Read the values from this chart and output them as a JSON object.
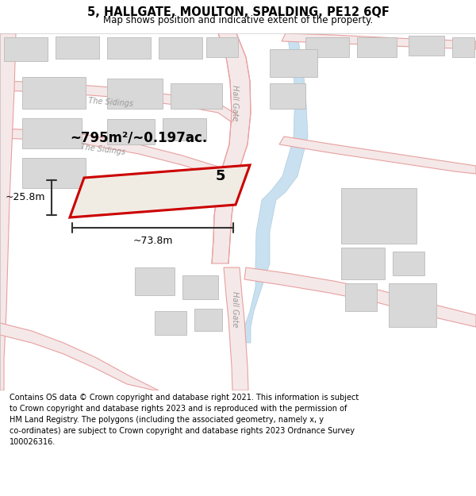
{
  "title_line1": "5, HALLGATE, MOULTON, SPALDING, PE12 6QF",
  "title_line2": "Map shows position and indicative extent of the property.",
  "footer_lines": [
    "Contains OS data © Crown copyright and database right 2021. This information is subject to Crown copyright and database rights 2023 and is reproduced with the permission of",
    "HM Land Registry. The polygons (including the associated geometry, namely x, y co-ordinates) are subject to Crown copyright and database rights 2023 Ordnance Survey",
    "100026316."
  ],
  "map_bg": "#ffffff",
  "road_fill": "#f5e8e8",
  "road_edge": "#e8a0a0",
  "water_fill": "#c8e0ef",
  "water_edge": "#b0ccdf",
  "building_fill": "#d8d8d8",
  "building_edge": "#bbbbbb",
  "prop_fill": "#f0ece4",
  "prop_edge": "#cc0000",
  "dim_color": "#333333",
  "road_label_color": "#999999",
  "area_text": "~795m²/~0.197ac.",
  "width_text": "~73.8m",
  "height_text": "~25.8m",
  "title_fontsize": 10.5,
  "subtitle_fontsize": 8.5,
  "footer_fontsize": 7.0,
  "area_fontsize": 12,
  "dim_fontsize": 9,
  "road_label_fontsize": 7,
  "prop_label_fontsize": 13
}
